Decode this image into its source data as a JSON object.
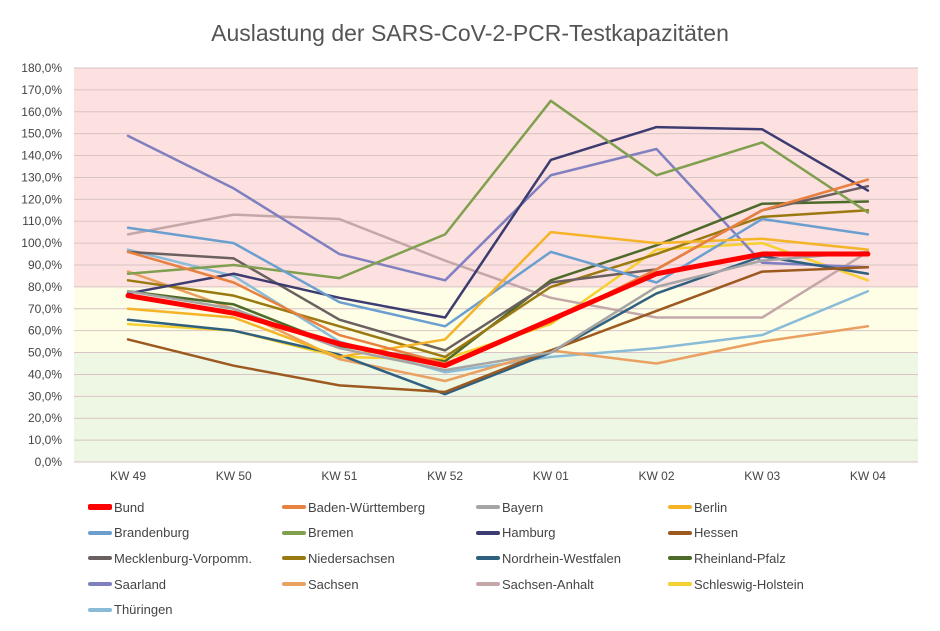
{
  "chart_data": {
    "type": "line",
    "title": "Auslastung der SARS-CoV-2-PCR-Testkapazitäten",
    "xlabel": "",
    "ylabel": "",
    "ylim": [
      0,
      180
    ],
    "y_tick_step": 10,
    "y_tick_format": "percent-comma-1-decimal",
    "grid": "horizontal",
    "legend_position": "bottom",
    "bands": [
      {
        "from": 80,
        "to": 180,
        "color": "#fde0e0"
      },
      {
        "from": 50,
        "to": 80,
        "color": "#fefde6"
      },
      {
        "from": 0,
        "to": 50,
        "color": "#eef6e4"
      }
    ],
    "categories": [
      "KW 49",
      "KW 50",
      "KW 51",
      "KW 52",
      "KW 01",
      "KW 02",
      "KW 03",
      "KW 04"
    ],
    "series": [
      {
        "name": "Bund",
        "color": "#ff0000",
        "width": 5,
        "values": [
          76,
          68,
          54,
          44,
          65,
          86,
          95,
          95
        ]
      },
      {
        "name": "Baden-Württemberg",
        "color": "#e8803f",
        "values": [
          96,
          82,
          58,
          45,
          64,
          88,
          115,
          129
        ]
      },
      {
        "name": "Bayern",
        "color": "#a5a5a5",
        "values": [
          78,
          70,
          52,
          42,
          50,
          80,
          92,
          96
        ]
      },
      {
        "name": "Berlin",
        "color": "#f5b428",
        "values": [
          70,
          66,
          48,
          56,
          105,
          100,
          102,
          97
        ]
      },
      {
        "name": "Brandenburg",
        "color": "#6a9fd0",
        "values": [
          107,
          100,
          73,
          62,
          96,
          82,
          111,
          104
        ]
      },
      {
        "name": "Bremen",
        "color": "#80a050",
        "values": [
          86,
          90,
          84,
          104,
          165,
          131,
          146,
          114
        ]
      },
      {
        "name": "Hamburg",
        "color": "#3c3c70",
        "values": [
          77,
          86,
          75,
          66,
          138,
          153,
          152,
          124
        ]
      },
      {
        "name": "Hessen",
        "color": "#9c5a20",
        "values": [
          56,
          44,
          35,
          32,
          51,
          69,
          87,
          89
        ]
      },
      {
        "name": "Mecklenburg-Vorpomm.",
        "color": "#6a6060",
        "values": [
          96,
          93,
          65,
          51,
          82,
          88,
          115,
          126
        ]
      },
      {
        "name": "Niedersachsen",
        "color": "#9a7a10",
        "values": [
          83,
          76,
          62,
          48,
          80,
          95,
          112,
          115
        ]
      },
      {
        "name": "Nordrhein-Westfalen",
        "color": "#2f6080",
        "values": [
          65,
          60,
          49,
          31,
          50,
          77,
          94,
          86
        ]
      },
      {
        "name": "Rheinland-Pfalz",
        "color": "#4e6a2a",
        "values": [
          78,
          72,
          53,
          46,
          83,
          99,
          118,
          119
        ]
      },
      {
        "name": "Saarland",
        "color": "#8080c0",
        "values": [
          149,
          125,
          95,
          83,
          131,
          143,
          91,
          89
        ]
      },
      {
        "name": "Sachsen",
        "color": "#eaa060",
        "values": [
          87,
          70,
          47,
          37,
          51,
          45,
          55,
          62
        ]
      },
      {
        "name": "Sachsen-Anhalt",
        "color": "#c4a8a8",
        "values": [
          104,
          113,
          111,
          92,
          75,
          66,
          66,
          96
        ]
      },
      {
        "name": "Schleswig-Holstein",
        "color": "#f5d030",
        "values": [
          63,
          60,
          48,
          47,
          63,
          97,
          100,
          83
        ]
      },
      {
        "name": "Thüringen",
        "color": "#8abcd8",
        "values": [
          97,
          85,
          55,
          41,
          48,
          52,
          58,
          78
        ]
      }
    ]
  }
}
